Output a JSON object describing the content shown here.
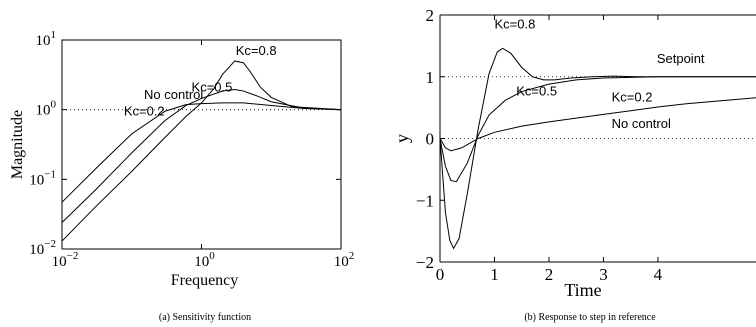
{
  "chart_data": [
    {
      "type": "line",
      "caption": "(a) Sensitivity function",
      "xlabel": "Frequency",
      "ylabel": "Magnitude",
      "xscale": "log",
      "yscale": "log",
      "xlim": [
        0.01,
        100
      ],
      "ylim": [
        0.01,
        10
      ],
      "xticks": [
        {
          "value": 0.01,
          "base": "10",
          "exp": "−2"
        },
        {
          "value": 1,
          "base": "10",
          "exp": "0"
        },
        {
          "value": 100,
          "base": "10",
          "exp": "2"
        }
      ],
      "yticks": [
        {
          "value": 0.01,
          "base": "10",
          "exp": "−2"
        },
        {
          "value": 0.1,
          "base": "10",
          "exp": "−1"
        },
        {
          "value": 1,
          "base": "10",
          "exp": "0"
        },
        {
          "value": 10,
          "base": "10",
          "exp": "1"
        }
      ],
      "reference_line": {
        "y": 1,
        "style": "dotted"
      },
      "series": [
        {
          "name": "No control",
          "x": [
            0.01,
            0.03,
            0.1,
            0.3,
            0.6,
            1,
            2,
            4,
            10,
            30,
            100
          ],
          "y": [
            0.047,
            0.14,
            0.45,
            0.95,
            1.18,
            1.22,
            1.25,
            1.25,
            1.15,
            1.04,
            1.0
          ]
        },
        {
          "name": "Kc=0.5",
          "x": [
            0.01,
            0.03,
            0.1,
            0.3,
            0.6,
            1,
            2,
            3,
            4,
            6,
            10,
            30,
            100
          ],
          "y": [
            0.024,
            0.07,
            0.24,
            0.7,
            1.15,
            1.45,
            1.85,
            1.95,
            1.85,
            1.6,
            1.3,
            1.05,
            1.0
          ]
        },
        {
          "name": "Kc=0.2",
          "x": [
            0.01,
            0.03,
            0.1,
            0.3,
            0.6,
            1,
            1.5,
            2,
            3,
            4,
            5,
            7,
            10,
            20,
            100
          ],
          "y": [
            0.013,
            0.04,
            0.13,
            0.4,
            0.8,
            1.25,
            2.0,
            3.2,
            5.0,
            4.7,
            3.5,
            2.1,
            1.5,
            1.1,
            1.0
          ]
        }
      ],
      "annotations": [
        {
          "text": "Kc=0.8",
          "x": 3.1,
          "y": 6.1
        },
        {
          "text": "Kc=0.5",
          "x": 0.72,
          "y": 1.82
        },
        {
          "text": "No control",
          "x": 0.15,
          "y": 1.42
        },
        {
          "text": "Kc=0.2",
          "x": 0.077,
          "y": 0.83
        }
      ]
    },
    {
      "type": "line",
      "caption": "(b) Response to step in reference",
      "xlabel": "Time",
      "ylabel": "y",
      "xlim": [
        0,
        5.8
      ],
      "ylim": [
        -2,
        2
      ],
      "xticks": [
        0,
        1,
        2,
        3,
        4
      ],
      "yticks": [
        -2,
        -1,
        0,
        1,
        2
      ],
      "reference_lines": [
        {
          "y": 1,
          "style": "dotted"
        },
        {
          "y": 0,
          "style": "dotted"
        }
      ],
      "series": [
        {
          "name": "Kc=0.8",
          "x": [
            0,
            0.05,
            0.1,
            0.18,
            0.25,
            0.35,
            0.5,
            0.7,
            0.9,
            1.05,
            1.15,
            1.3,
            1.5,
            1.7,
            1.9,
            2.1,
            2.4,
            2.8,
            3.2,
            3.6,
            4.0,
            5.0,
            5.8
          ],
          "y": [
            0,
            -0.6,
            -1.2,
            -1.65,
            -1.78,
            -1.62,
            -0.9,
            0.15,
            1.05,
            1.4,
            1.46,
            1.38,
            1.15,
            1.0,
            0.95,
            0.95,
            0.98,
            1.0,
            1.01,
            1.0,
            1.0,
            1.0,
            1.0
          ]
        },
        {
          "name": "Kc=0.5",
          "x": [
            0,
            0.1,
            0.2,
            0.3,
            0.5,
            0.7,
            0.9,
            1.2,
            1.5,
            2.0,
            2.5,
            3.0,
            3.5,
            4.0,
            5.0,
            5.8
          ],
          "y": [
            0,
            -0.45,
            -0.68,
            -0.7,
            -0.4,
            0.05,
            0.38,
            0.62,
            0.76,
            0.88,
            0.95,
            0.98,
            0.99,
            1.0,
            1.0,
            1.0
          ]
        },
        {
          "name": "Kc=0.2",
          "x": [
            0,
            0.1,
            0.2,
            0.4,
            0.7,
            1.0,
            1.5,
            2.0,
            2.5,
            3.0,
            3.5,
            4.0,
            4.5,
            5.0,
            5.8
          ],
          "y": [
            0,
            -0.15,
            -0.2,
            -0.15,
            0.0,
            0.1,
            0.2,
            0.27,
            0.33,
            0.39,
            0.45,
            0.51,
            0.56,
            0.6,
            0.66
          ]
        }
      ],
      "annotations": [
        {
          "text": "Kc=0.8",
          "x": 1.0,
          "y": 1.78
        },
        {
          "text": "Setpoint",
          "x": 3.98,
          "y": 1.22
        },
        {
          "text": "Kc=0.5",
          "x": 1.4,
          "y": 0.7
        },
        {
          "text": "Kc=0.2",
          "x": 3.15,
          "y": 0.6
        },
        {
          "text": "No control",
          "x": 3.15,
          "y": 0.17
        }
      ]
    }
  ]
}
